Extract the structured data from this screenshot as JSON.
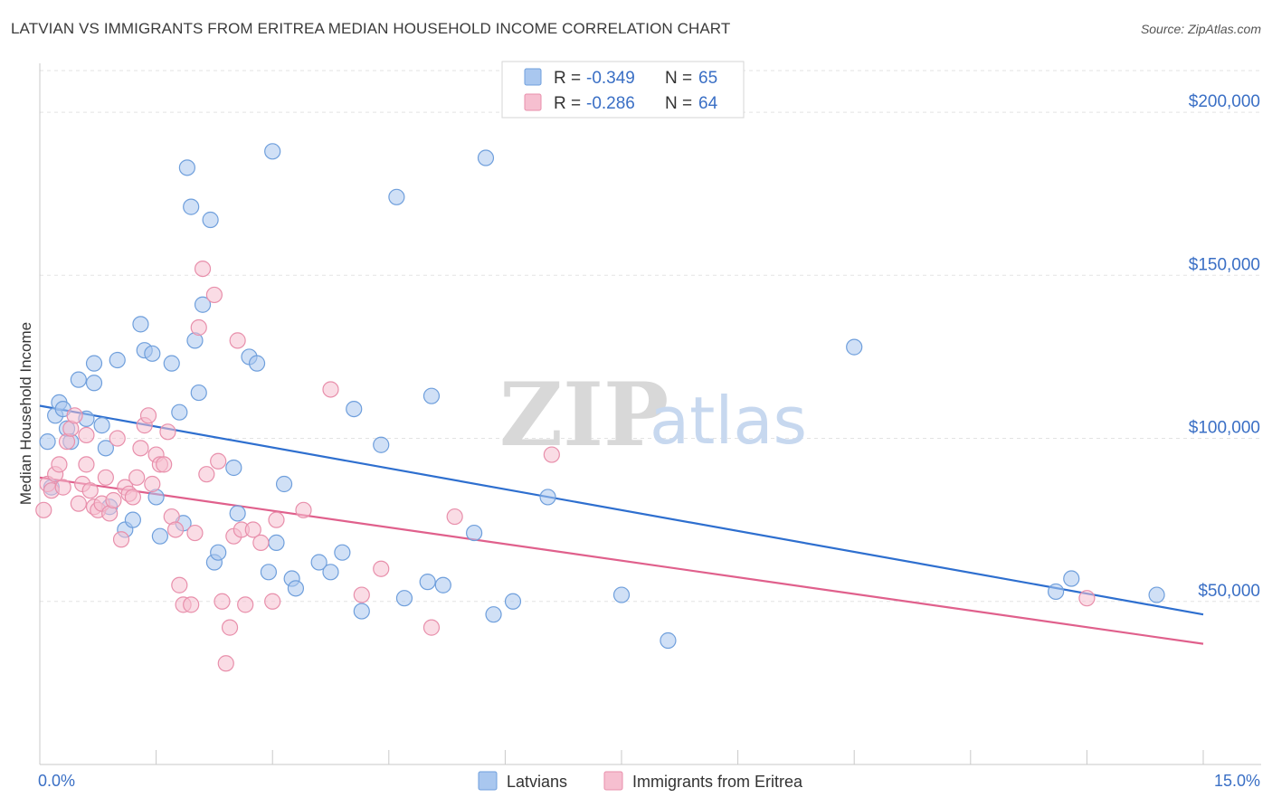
{
  "header": {
    "title": "LATVIAN VS IMMIGRANTS FROM ERITREA MEDIAN HOUSEHOLD INCOME CORRELATION CHART",
    "source": "Source: ZipAtlas.com"
  },
  "watermark": {
    "zip": "ZIP",
    "atlas": "atlas"
  },
  "legend": {
    "items": [
      {
        "r_label": "R =",
        "r_value": "-0.349",
        "n_label": "N =",
        "n_value": "65",
        "color": "#a9c7ef",
        "stroke": "#6f9fdc"
      },
      {
        "r_label": "R =",
        "r_value": "-0.286",
        "n_label": "N =",
        "n_value": "64",
        "color": "#f6bfd0",
        "stroke": "#e88fab"
      }
    ]
  },
  "chart_data": {
    "type": "scatter",
    "title": "LATVIAN VS IMMIGRANTS FROM ERITREA MEDIAN HOUSEHOLD INCOME CORRELATION CHART",
    "xlabel": "",
    "ylabel": "Median Household Income",
    "xlim": [
      0,
      15
    ],
    "ylim": [
      0,
      215000
    ],
    "x_tick_labels": [
      "0.0%",
      "15.0%"
    ],
    "y_ticks": [
      50000,
      100000,
      150000,
      200000
    ],
    "y_tick_labels": [
      "$50,000",
      "$100,000",
      "$150,000",
      "$200,000"
    ],
    "grid": true,
    "legend_position": "top-center",
    "series": [
      {
        "name": "Latvians",
        "color": "#6f9fdc",
        "fill": "#a9c7ef",
        "trend_color": "#2e6fcf",
        "trend": {
          "x": [
            0.0,
            15.0
          ],
          "y": [
            110000,
            46000
          ]
        },
        "points": [
          [
            0.1,
            99000
          ],
          [
            0.15,
            85000
          ],
          [
            0.2,
            107000
          ],
          [
            0.25,
            111000
          ],
          [
            0.3,
            109000
          ],
          [
            0.35,
            103000
          ],
          [
            0.4,
            99000
          ],
          [
            0.5,
            118000
          ],
          [
            0.6,
            106000
          ],
          [
            0.7,
            123000
          ],
          [
            0.7,
            117000
          ],
          [
            0.8,
            104000
          ],
          [
            0.85,
            97000
          ],
          [
            0.9,
            79000
          ],
          [
            1.0,
            124000
          ],
          [
            1.1,
            72000
          ],
          [
            1.2,
            75000
          ],
          [
            1.3,
            135000
          ],
          [
            1.35,
            127000
          ],
          [
            1.45,
            126000
          ],
          [
            1.5,
            82000
          ],
          [
            1.55,
            70000
          ],
          [
            1.7,
            123000
          ],
          [
            1.8,
            108000
          ],
          [
            1.85,
            74000
          ],
          [
            1.9,
            183000
          ],
          [
            1.95,
            171000
          ],
          [
            2.0,
            130000
          ],
          [
            2.05,
            114000
          ],
          [
            2.1,
            141000
          ],
          [
            2.2,
            167000
          ],
          [
            2.25,
            62000
          ],
          [
            2.3,
            65000
          ],
          [
            2.5,
            91000
          ],
          [
            2.55,
            77000
          ],
          [
            2.7,
            125000
          ],
          [
            2.8,
            123000
          ],
          [
            2.95,
            59000
          ],
          [
            3.05,
            68000
          ],
          [
            3.0,
            188000
          ],
          [
            3.15,
            86000
          ],
          [
            3.25,
            57000
          ],
          [
            3.3,
            54000
          ],
          [
            3.6,
            62000
          ],
          [
            3.75,
            59000
          ],
          [
            3.9,
            65000
          ],
          [
            4.05,
            109000
          ],
          [
            4.15,
            47000
          ],
          [
            4.4,
            98000
          ],
          [
            4.6,
            174000
          ],
          [
            4.7,
            51000
          ],
          [
            5.0,
            56000
          ],
          [
            5.05,
            113000
          ],
          [
            5.2,
            55000
          ],
          [
            5.6,
            71000
          ],
          [
            5.75,
            186000
          ],
          [
            5.85,
            46000
          ],
          [
            6.1,
            50000
          ],
          [
            6.55,
            82000
          ],
          [
            7.5,
            52000
          ],
          [
            8.1,
            38000
          ],
          [
            10.5,
            128000
          ],
          [
            13.1,
            53000
          ],
          [
            13.3,
            57000
          ],
          [
            14.4,
            52000
          ]
        ]
      },
      {
        "name": "Immigrants from Eritrea",
        "color": "#e88fab",
        "fill": "#f6bfd0",
        "trend_color": "#e0608c",
        "trend": {
          "x": [
            0.0,
            15.0
          ],
          "y": [
            88000,
            37000
          ]
        },
        "points": [
          [
            0.05,
            78000
          ],
          [
            0.1,
            86000
          ],
          [
            0.15,
            84000
          ],
          [
            0.2,
            89000
          ],
          [
            0.3,
            85000
          ],
          [
            0.35,
            99000
          ],
          [
            0.4,
            103000
          ],
          [
            0.45,
            107000
          ],
          [
            0.5,
            80000
          ],
          [
            0.55,
            86000
          ],
          [
            0.6,
            101000
          ],
          [
            0.65,
            84000
          ],
          [
            0.7,
            79000
          ],
          [
            0.75,
            78000
          ],
          [
            0.8,
            80000
          ],
          [
            0.85,
            88000
          ],
          [
            0.9,
            77000
          ],
          [
            0.95,
            81000
          ],
          [
            1.0,
            100000
          ],
          [
            1.05,
            69000
          ],
          [
            1.1,
            85000
          ],
          [
            1.15,
            83000
          ],
          [
            1.2,
            82000
          ],
          [
            1.25,
            88000
          ],
          [
            1.3,
            97000
          ],
          [
            1.35,
            104000
          ],
          [
            1.4,
            107000
          ],
          [
            1.45,
            86000
          ],
          [
            1.5,
            95000
          ],
          [
            1.55,
            92000
          ],
          [
            1.6,
            92000
          ],
          [
            1.65,
            102000
          ],
          [
            1.7,
            76000
          ],
          [
            1.75,
            72000
          ],
          [
            1.8,
            55000
          ],
          [
            1.85,
            49000
          ],
          [
            1.95,
            49000
          ],
          [
            2.0,
            71000
          ],
          [
            2.05,
            134000
          ],
          [
            2.1,
            152000
          ],
          [
            2.15,
            89000
          ],
          [
            2.25,
            144000
          ],
          [
            2.3,
            93000
          ],
          [
            2.35,
            50000
          ],
          [
            2.4,
            31000
          ],
          [
            2.45,
            42000
          ],
          [
            2.5,
            70000
          ],
          [
            2.55,
            130000
          ],
          [
            2.6,
            72000
          ],
          [
            2.65,
            49000
          ],
          [
            2.75,
            72000
          ],
          [
            2.85,
            68000
          ],
          [
            3.0,
            50000
          ],
          [
            3.05,
            75000
          ],
          [
            3.4,
            78000
          ],
          [
            3.75,
            115000
          ],
          [
            4.15,
            52000
          ],
          [
            4.4,
            60000
          ],
          [
            5.05,
            42000
          ],
          [
            5.35,
            76000
          ],
          [
            6.6,
            95000
          ],
          [
            13.5,
            51000
          ],
          [
            0.25,
            92000
          ],
          [
            0.6,
            92000
          ]
        ]
      }
    ]
  }
}
